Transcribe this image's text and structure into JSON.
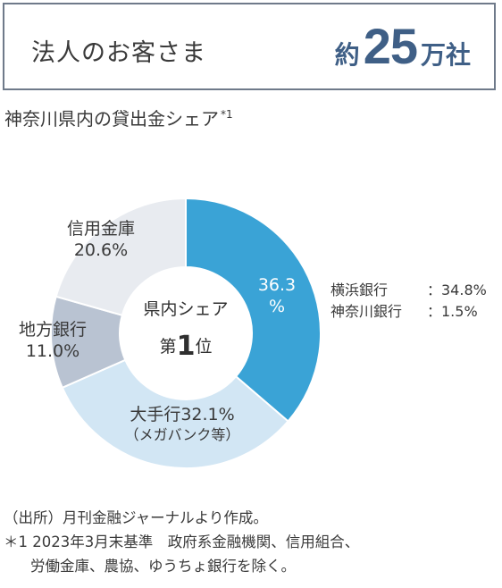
{
  "header": {
    "label": "法人のお客さま",
    "count_prefix": "約",
    "count_number": "25",
    "count_suffix": "万社"
  },
  "chart_title": "神奈川県内の貸出金シェア",
  "chart_title_note": "*1",
  "center": {
    "line1": "県内シェア",
    "rank_prefix": "第",
    "rank_number": "1",
    "rank_suffix": "位"
  },
  "labels": {
    "seg0_line1": "36.3",
    "seg0_line2": "%",
    "seg1_line1": "大手行32.1%",
    "seg1_line2": "（メガバンク等）",
    "seg2_line1": "地方銀行",
    "seg2_line2": "11.0%",
    "seg3_line1": "信用金庫",
    "seg3_line2": "20.6%"
  },
  "breakdown": [
    {
      "name": "横浜銀行",
      "value": "：34.8%"
    },
    {
      "name": "神奈川銀行",
      "value": "：1.5%"
    }
  ],
  "notes": {
    "source": "（出所）月刊金融ジャーナルより作成。",
    "note1_line1": "＊1 2023年3月末基準　政府系金融機関、信用組合、",
    "note1_line2": "労働金庫、農協、ゆうちょ銀行を除く。"
  },
  "chart_data": {
    "type": "pie",
    "title": "神奈川県内の貸出金シェア",
    "categories": [
      "",
      "大手行（メガバンク等）",
      "地方銀行",
      "信用金庫"
    ],
    "values": [
      36.3,
      32.1,
      11.0,
      20.6
    ],
    "colors": [
      "#3aa3d6",
      "#d2e6f4",
      "#b9c3d2",
      "#e8ebf0"
    ],
    "unit": "%"
  }
}
